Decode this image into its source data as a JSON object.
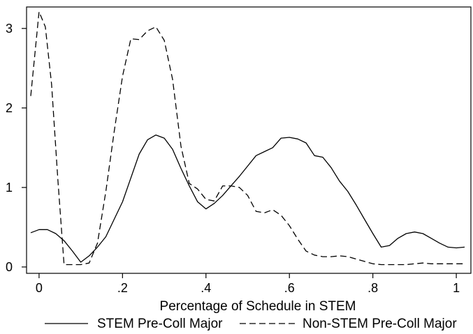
{
  "chart_data": {
    "type": "line",
    "title": "",
    "xlabel": "Percentage of Schedule in STEM",
    "ylabel": "",
    "xlim": [
      -0.03,
      1.035
    ],
    "ylim": [
      -0.08,
      3.27
    ],
    "x_ticks": [
      0,
      0.2,
      0.4,
      0.6,
      0.8,
      1
    ],
    "x_tick_labels": [
      "0",
      ".2",
      ".4",
      ".6",
      ".8",
      "1"
    ],
    "y_ticks": [
      0,
      1,
      2,
      3
    ],
    "y_tick_labels": [
      "0",
      "1",
      "2",
      "3"
    ],
    "grid": false,
    "legend_position": "bottom",
    "series": [
      {
        "name": "STEM Pre-Coll Major",
        "line_style": "solid",
        "x": [
          -0.02,
          0.0,
          0.02,
          0.04,
          0.06,
          0.08,
          0.1,
          0.12,
          0.14,
          0.16,
          0.18,
          0.2,
          0.22,
          0.24,
          0.26,
          0.28,
          0.3,
          0.32,
          0.34,
          0.36,
          0.38,
          0.4,
          0.42,
          0.44,
          0.46,
          0.48,
          0.5,
          0.52,
          0.54,
          0.56,
          0.58,
          0.6,
          0.62,
          0.64,
          0.66,
          0.68,
          0.7,
          0.72,
          0.74,
          0.76,
          0.78,
          0.8,
          0.82,
          0.84,
          0.86,
          0.88,
          0.9,
          0.92,
          0.94,
          0.96,
          0.98,
          1.0,
          1.02
        ],
        "y": [
          0.43,
          0.47,
          0.47,
          0.42,
          0.33,
          0.2,
          0.06,
          0.14,
          0.25,
          0.38,
          0.6,
          0.82,
          1.12,
          1.42,
          1.6,
          1.66,
          1.62,
          1.48,
          1.24,
          1.02,
          0.82,
          0.73,
          0.8,
          0.9,
          1.02,
          1.14,
          1.27,
          1.4,
          1.45,
          1.5,
          1.62,
          1.63,
          1.61,
          1.56,
          1.4,
          1.38,
          1.25,
          1.08,
          0.95,
          0.78,
          0.6,
          0.42,
          0.25,
          0.27,
          0.36,
          0.42,
          0.44,
          0.42,
          0.36,
          0.3,
          0.25,
          0.24,
          0.25
        ]
      },
      {
        "name": "Non-STEM Pre-Coll Major",
        "line_style": "dashed",
        "x": [
          -0.02,
          0.0,
          0.015,
          0.03,
          0.045,
          0.06,
          0.08,
          0.1,
          0.12,
          0.14,
          0.16,
          0.18,
          0.2,
          0.22,
          0.24,
          0.26,
          0.28,
          0.3,
          0.32,
          0.34,
          0.36,
          0.38,
          0.4,
          0.42,
          0.44,
          0.46,
          0.48,
          0.5,
          0.52,
          0.54,
          0.56,
          0.58,
          0.6,
          0.62,
          0.64,
          0.66,
          0.68,
          0.7,
          0.72,
          0.74,
          0.76,
          0.78,
          0.8,
          0.82,
          0.84,
          0.86,
          0.88,
          0.9,
          0.92,
          0.94,
          0.96,
          0.98,
          1.0,
          1.02
        ],
        "y": [
          2.15,
          3.21,
          3.02,
          2.3,
          1.1,
          0.03,
          0.03,
          0.03,
          0.05,
          0.3,
          0.95,
          1.7,
          2.4,
          2.87,
          2.86,
          2.97,
          3.02,
          2.85,
          2.36,
          1.52,
          1.05,
          0.98,
          0.85,
          0.83,
          1.02,
          1.02,
          1.0,
          0.9,
          0.7,
          0.68,
          0.72,
          0.65,
          0.52,
          0.35,
          0.2,
          0.15,
          0.13,
          0.13,
          0.14,
          0.13,
          0.1,
          0.07,
          0.04,
          0.03,
          0.03,
          0.03,
          0.03,
          0.04,
          0.05,
          0.04,
          0.04,
          0.04,
          0.04,
          0.04
        ]
      }
    ]
  }
}
